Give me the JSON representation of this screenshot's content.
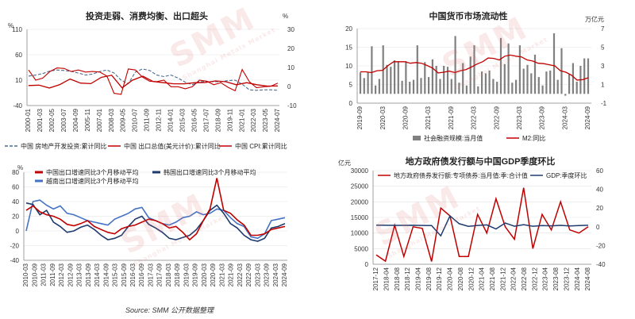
{
  "watermark": {
    "text": "SMM",
    "sub": "Shanghai Metals Market"
  },
  "source": "Source: SMM 公开数据整理",
  "colors": {
    "red": "#c00000",
    "navy": "#1f3a6e",
    "blue": "#4472c4",
    "lightblue": "#8fb2dc",
    "gray": "#808080"
  },
  "chart_data": [
    {
      "id": "c1",
      "type": "line",
      "title": "投资走弱、消费均衡、出口超头",
      "left_axis_unit": "%",
      "right_axis_unit": "%",
      "ylim_left": [
        -40,
        110
      ],
      "yticks_left": [
        -40,
        10,
        60,
        110
      ],
      "ylim_right": [
        -10,
        30
      ],
      "yticks_right": [
        -10,
        0,
        10,
        20,
        30
      ],
      "x_ticks": [
        "2000-01",
        "2001-03",
        "2002-05",
        "2003-07",
        "2004-09",
        "2005-11",
        "2007-01",
        "2008-03",
        "2009-05",
        "2010-07",
        "2011-09",
        "2012-11",
        "2014-01",
        "2015-03",
        "2016-05",
        "2017-07",
        "2018-09",
        "2019-11",
        "2021-01",
        "2022-03",
        "2023-05",
        "2024-07"
      ],
      "series": [
        {
          "name": "中国 房地产开发投资:累计同比",
          "axis": "left",
          "color": "#4f6d8f",
          "dash": "4,2",
          "values": [
            18,
            20,
            23,
            28,
            30,
            29,
            27,
            24,
            20,
            22,
            27,
            30,
            24,
            10,
            3,
            26,
            32,
            29,
            20,
            17,
            20,
            14,
            6,
            1,
            7,
            7,
            7,
            7,
            9,
            10,
            2,
            -9,
            -10,
            -9,
            -9,
            -10
          ]
        },
        {
          "name": "中国 出口总值(美元计价):累计同比",
          "axis": "left",
          "color": "#c00000",
          "values": [
            30,
            10,
            14,
            27,
            34,
            33,
            27,
            30,
            26,
            27,
            26,
            18,
            -16,
            -18,
            32,
            30,
            16,
            8,
            7,
            10,
            -3,
            -3,
            -7,
            -3,
            10,
            8,
            1,
            5,
            -4,
            -11,
            31,
            7,
            -5,
            -3,
            -2,
            4
          ]
        },
        {
          "name": "中国 CPI:累计同比",
          "axis": "right",
          "color": "#c00000",
          "values": [
            0.5,
            0.7,
            -0.8,
            1.0,
            3.9,
            1.8,
            1.5,
            4.8,
            5.9,
            -0.7,
            3.3,
            5.4,
            2.6,
            2.0,
            1.4,
            1.4,
            2.0,
            2.1,
            2.9,
            2.5,
            0.9,
            2.0,
            0.9,
            0.2,
            0.3
          ]
        }
      ],
      "legend": [
        "中国 房地产开发投资:累计同比",
        "中国 出口总值(美元计价):累计同比",
        "中国 CPI:累计同比"
      ]
    },
    {
      "id": "c2",
      "type": "bar+line",
      "title": "中国货币市场流动性",
      "left_axis_unit": "",
      "right_axis_unit": "万亿元",
      "ylim_left": [
        0,
        20
      ],
      "yticks_left": [
        0,
        5,
        10,
        15,
        20
      ],
      "ylim_right": [
        -1,
        7
      ],
      "yticks_right": [
        -1,
        1,
        3,
        5,
        7
      ],
      "x_ticks": [
        "2019-09",
        "2020-03",
        "2020-09",
        "2021-03",
        "2021-09",
        "2022-03",
        "2022-09",
        "2023-03",
        "2023-09",
        "2024-03",
        "2024-09"
      ],
      "bars": {
        "name": "社会融资规模:当月值",
        "axis": "right",
        "color": "#808080",
        "values": [
          2.3,
          1.7,
          2.3,
          5.1,
          0.9,
          1.6,
          5.2,
          3.1,
          2.9,
          3.6,
          3.5,
          1.4,
          3.5,
          1.3,
          1.5,
          5.2,
          1.7,
          3.4,
          1.8,
          3.7,
          3.0,
          1.6,
          3.0,
          2.9,
          1.6,
          6.2,
          1.2,
          3.3,
          0.9,
          4.0,
          5.2,
          0.8,
          2.4,
          2.2,
          2.5,
          1.6,
          1.3,
          6.0,
          3.2,
          5.4,
          1.2,
          1.5,
          5.2,
          2.7,
          3.1,
          2.2,
          4.2,
          1.8,
          0.9,
          2.4,
          2.5,
          6.5,
          1.5,
          4.9,
          -0.2,
          2.1,
          3.3,
          1.3,
          3.0,
          3.8,
          3.8
        ]
      },
      "line": {
        "name": "M2:同比",
        "axis": "left",
        "color": "#c00000",
        "values": [
          8.4,
          8.4,
          8.2,
          8.7,
          8.8,
          10.1,
          11.1,
          11.1,
          11.1,
          10.7,
          10.9,
          10.7,
          10.1,
          9.4,
          8.1,
          8.3,
          8.6,
          8.2,
          8.7,
          9.0,
          9.7,
          10.5,
          11.1,
          12.1,
          12.0,
          11.6,
          12.6,
          12.9,
          12.6,
          12.4,
          11.6,
          11.3,
          10.7,
          10.6,
          10.3,
          10.0,
          8.7,
          8.3,
          7.5,
          6.2,
          6.3,
          6.8
        ]
      },
      "legend": [
        "社会融资规模:当月值",
        "M2:同比"
      ]
    },
    {
      "id": "c3",
      "type": "line",
      "title": "",
      "left_axis_unit": "%",
      "ylim": [
        -40,
        80
      ],
      "yticks": [
        -40,
        -20,
        0,
        20,
        40,
        60,
        80
      ],
      "x_ticks": [
        "2010-03",
        "2010-09",
        "2011-03",
        "2011-09",
        "2012-03",
        "2012-09",
        "2013-03",
        "2013-09",
        "2014-03",
        "2014-09",
        "2015-03",
        "2015-09",
        "2016-03",
        "2016-09",
        "2017-03",
        "2017-09",
        "2018-03",
        "2018-09",
        "2019-03",
        "2019-09",
        "2020-03",
        "2020-09",
        "2021-03",
        "2021-09",
        "2022-03",
        "2022-09",
        "2023-03",
        "2023-09",
        "2024-03",
        "2024-09"
      ],
      "series": [
        {
          "name": "中国出口增速同比3个月移动平均",
          "color": "#c00000",
          "values": [
            28,
            34,
            26,
            22,
            20,
            16,
            9,
            7,
            10,
            14,
            6,
            2,
            -2,
            -4,
            3,
            6,
            8,
            12,
            16,
            14,
            10,
            4,
            6,
            -2,
            -12,
            -4,
            14,
            30,
            72,
            28,
            24,
            15,
            8,
            -6,
            -6,
            -4,
            2,
            4,
            6
          ]
        },
        {
          "name": "韩国出口增速同比3个月移动平均",
          "color": "#1f3a6e",
          "values": [
            38,
            36,
            22,
            28,
            12,
            6,
            -2,
            0,
            5,
            8,
            2,
            -6,
            -12,
            -10,
            -6,
            6,
            16,
            20,
            9,
            4,
            -2,
            -10,
            -12,
            -9,
            -6,
            2,
            14,
            28,
            35,
            24,
            10,
            4,
            -6,
            -12,
            -14,
            -10,
            4,
            6,
            10
          ]
        },
        {
          "name": "越南出口增速同比3个月移动平均",
          "color": "#4472c4",
          "values": [
            0,
            40,
            42,
            35,
            30,
            34,
            24,
            22,
            18,
            14,
            12,
            10,
            8,
            16,
            20,
            24,
            30,
            32,
            18,
            14,
            10,
            8,
            12,
            18,
            20,
            26,
            22,
            24,
            30,
            28,
            18,
            10,
            6,
            -8,
            -10,
            -4,
            14,
            16,
            18
          ]
        }
      ],
      "legend": [
        "中国出口增速同比3个月移动平均",
        "韩国出口增速同比3个月移动平均",
        "越南出口增速同比3个月移动平均"
      ]
    },
    {
      "id": "c4",
      "type": "line",
      "title": "地方政府债发行额与中国GDP季度环比",
      "left_axis_unit": "亿元",
      "ylim_left": [
        0,
        30000
      ],
      "yticks_left": [
        0,
        5000,
        10000,
        15000,
        20000,
        25000,
        30000
      ],
      "ylim_right": [
        -40,
        60
      ],
      "yticks_right": [
        -40,
        -20,
        0,
        20,
        40,
        60
      ],
      "x_ticks": [
        "2017-12",
        "2018-04",
        "2018-08",
        "2018-12",
        "2019-04",
        "2019-08",
        "2019-12",
        "2020-04",
        "2020-08",
        "2020-12",
        "2021-04",
        "2021-08",
        "2021-12",
        "2022-04",
        "2022-08",
        "2022-12",
        "2023-04",
        "2023-08",
        "2023-12",
        "2024-04",
        "2024-08"
      ],
      "series": [
        {
          "name": "地方政府债券发行额:专项债券:当月值:季:合计值",
          "axis": "left",
          "color": "#c00000",
          "values": [
            3000,
            1000,
            12500,
            2500,
            12000,
            11500,
            900,
            18000,
            15500,
            2500,
            2500,
            16000,
            10000,
            21000,
            12000,
            8000,
            24500,
            5000,
            16000,
            11000,
            20000,
            11000,
            10000,
            12000
          ]
        },
        {
          "name": "GDP:季度环比",
          "axis": "right",
          "color": "#1f3a6e",
          "values": [
            1.7,
            1.6,
            1.5,
            1.5,
            1.6,
            1.4,
            1.3,
            -9.7,
            11.6,
            3.3,
            0.5,
            1.4,
            2.0,
            -2.3,
            4.0,
            0.6,
            2.3,
            0.6,
            1.3,
            1.0,
            1.5,
            0.9,
            1.3,
            1.6
          ]
        }
      ],
      "legend": [
        "地方政府债券发行额:专项债券:当月值:季:合计值",
        "GDP:季度环比"
      ]
    }
  ]
}
